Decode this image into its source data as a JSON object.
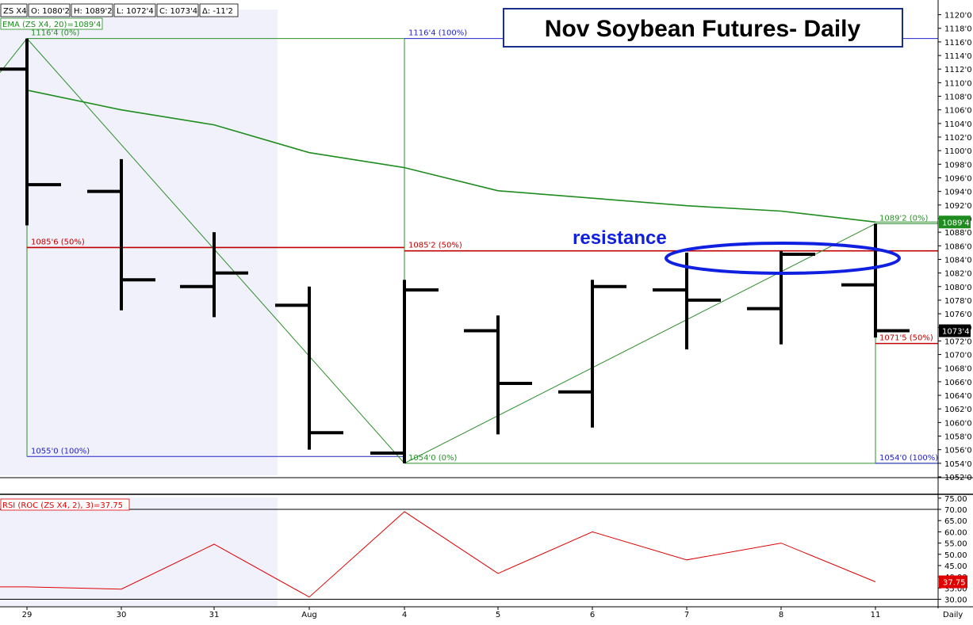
{
  "header": {
    "symbol": "ZS X4",
    "open": "O: 1080'2",
    "high": "H: 1089'2",
    "low": "L: 1072'4",
    "close": "C: 1073'4",
    "change": "Δ: -11'2",
    "ema_label": "EMA (ZS X4, 20)=1089'4",
    "rsi_label": "RSI (ROC (ZS X4, 2), 3)=37.75"
  },
  "title": "Nov Soybean Futures- Daily",
  "resistance_label": "resistance",
  "timeframe_label": "Daily",
  "colors": {
    "bars": "#000000",
    "ema": "#1e8c1e",
    "fib_green": "#2a8f2a",
    "fib_blue": "#2222cc",
    "fib_red": "#c00000",
    "rsi_line": "#e00000",
    "ellipse": "#1020e0",
    "shade": "#f1f1fb"
  },
  "chart_data": [
    {
      "type": "ohlc",
      "x_tick_labels": [
        "29",
        "30",
        "31",
        "Aug",
        "4",
        "5",
        "6",
        "7",
        "8",
        "11"
      ],
      "y_tick_labels": [
        "1052'0",
        "1054'0",
        "1056'0",
        "1058'0",
        "1060'0",
        "1062'0",
        "1064'0",
        "1066'0",
        "1068'0",
        "1070'0",
        "1072'0",
        "1074'0",
        "1076'0",
        "1078'0",
        "1080'0",
        "1082'0",
        "1084'0",
        "1086'0",
        "1088'0",
        "1090'0",
        "1092'0",
        "1094'0",
        "1096'0",
        "1098'0",
        "1100'0",
        "1102'0",
        "1104'0",
        "1106'0",
        "1108'0",
        "1110'0",
        "1112'0",
        "1114'0",
        "1116'0",
        "1118'0",
        "1120'0"
      ],
      "ylim": [
        1052,
        1121
      ],
      "bars": [
        {
          "date": "29",
          "open": 1112.0,
          "high": 1116.5,
          "low": 1089.0,
          "close": 1095.0
        },
        {
          "date": "30",
          "open": 1094.0,
          "high": 1098.75,
          "low": 1076.5,
          "close": 1081.0
        },
        {
          "date": "31",
          "open": 1080.0,
          "high": 1088.0,
          "low": 1075.5,
          "close": 1082.0
        },
        {
          "date": "Aug",
          "open": 1077.25,
          "high": 1080.0,
          "low": 1056.0,
          "close": 1058.5
        },
        {
          "date": "4",
          "open": 1055.5,
          "high": 1081.0,
          "low": 1054.0,
          "close": 1079.5
        },
        {
          "date": "5",
          "open": 1073.5,
          "high": 1075.75,
          "low": 1058.25,
          "close": 1065.75
        },
        {
          "date": "6",
          "open": 1064.5,
          "high": 1081.0,
          "low": 1059.25,
          "close": 1080.0
        },
        {
          "date": "7",
          "open": 1079.5,
          "high": 1085.0,
          "low": 1070.75,
          "close": 1078.0
        },
        {
          "date": "8",
          "open": 1076.75,
          "high": 1085.25,
          "low": 1071.5,
          "close": 1084.75
        },
        {
          "date": "11",
          "open": 1080.25,
          "high": 1089.25,
          "low": 1072.5,
          "close": 1073.5
        }
      ],
      "ema": {
        "name": "EMA (ZS X4, 20)",
        "values": [
          1108.9,
          1106.0,
          1103.8,
          1099.7,
          1097.5,
          1094.1,
          1093.0,
          1091.9,
          1091.1,
          1089.5
        ],
        "last_value": "1089'4"
      },
      "last_price_label": "1073'4",
      "fib_levels": [
        {
          "label": "1116'4 (0%)",
          "value": 1116.5,
          "color": "green"
        },
        {
          "label": "1085'6 (50%)",
          "value": 1085.75,
          "color": "red"
        },
        {
          "label": "1055'0 (100%)",
          "value": 1055.0,
          "color": "blue"
        },
        {
          "label": "1116'4 (100%)",
          "value": 1116.5,
          "color": "blue"
        },
        {
          "label": "1085'2 (50%)",
          "value": 1085.25,
          "color": "red"
        },
        {
          "label": "1054'0 (0%)",
          "value": 1054.0,
          "color": "green"
        },
        {
          "label": "1089'2 (0%)",
          "value": 1089.25,
          "color": "green"
        },
        {
          "label": "1071'5 (50%)",
          "value": 1071.625,
          "color": "red"
        },
        {
          "label": "1054'0 (100%)",
          "value": 1054.0,
          "color": "blue"
        }
      ]
    },
    {
      "type": "line",
      "name": "RSI (ROC (ZS X4, 2), 3)",
      "categories": [
        "29",
        "30",
        "31",
        "Aug",
        "4",
        "5",
        "6",
        "7",
        "8",
        "11"
      ],
      "values": [
        35.5,
        34.5,
        54.5,
        31.0,
        69.0,
        41.5,
        60.0,
        47.5,
        55.0,
        37.75
      ],
      "ylim": [
        27,
        76
      ],
      "reference_lines": [
        30,
        70
      ],
      "y_tick_labels": [
        "30.00",
        "35.00",
        "40.00",
        "45.00",
        "50.00",
        "55.00",
        "60.00",
        "65.00",
        "70.00",
        "75.00"
      ],
      "last_value_label": "37.75"
    }
  ]
}
